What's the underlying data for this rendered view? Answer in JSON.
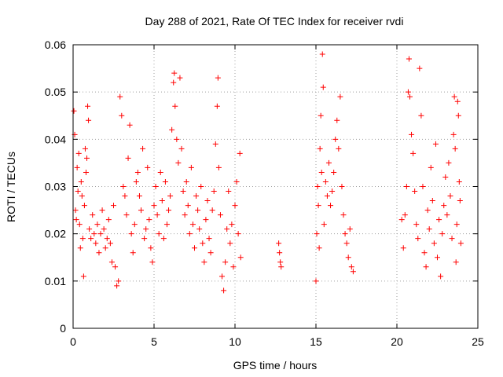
{
  "chart_data": {
    "type": "scatter",
    "title": "Day 288 of 2021, Rate Of TEC Index for receiver rvdi",
    "xlabel": "GPS time / hours",
    "ylabel": "ROTI / TECUs",
    "xlim": [
      0,
      25
    ],
    "ylim": [
      0,
      0.06
    ],
    "xticks": [
      "0",
      "5",
      "10",
      "15",
      "20",
      "25"
    ],
    "yticks": [
      "0",
      "0.01",
      "0.02",
      "0.03",
      "0.04",
      "0.05",
      "0.06"
    ],
    "grid": true,
    "marker": "+",
    "color": "#ff0000",
    "series": [
      {
        "points": [
          [
            0.05,
            0.046
          ],
          [
            0.1,
            0.041
          ],
          [
            0.15,
            0.025
          ],
          [
            0.2,
            0.023
          ],
          [
            0.25,
            0.034
          ],
          [
            0.3,
            0.029
          ],
          [
            0.35,
            0.037
          ],
          [
            0.4,
            0.022
          ],
          [
            0.45,
            0.017
          ],
          [
            0.5,
            0.031
          ],
          [
            0.55,
            0.028
          ],
          [
            0.6,
            0.019
          ],
          [
            0.65,
            0.011
          ],
          [
            0.7,
            0.026
          ],
          [
            0.75,
            0.038
          ],
          [
            0.8,
            0.033
          ],
          [
            0.85,
            0.036
          ],
          [
            0.9,
            0.047
          ],
          [
            0.95,
            0.044
          ],
          [
            1.0,
            0.021
          ],
          [
            1.1,
            0.019
          ],
          [
            1.2,
            0.024
          ],
          [
            1.3,
            0.02
          ],
          [
            1.4,
            0.018
          ],
          [
            1.5,
            0.022
          ],
          [
            1.6,
            0.016
          ],
          [
            1.7,
            0.02
          ],
          [
            1.8,
            0.025
          ],
          [
            1.9,
            0.021
          ],
          [
            2.0,
            0.017
          ],
          [
            2.1,
            0.019
          ],
          [
            2.2,
            0.023
          ],
          [
            2.3,
            0.018
          ],
          [
            2.4,
            0.014
          ],
          [
            2.5,
            0.026
          ],
          [
            2.6,
            0.013
          ],
          [
            2.7,
            0.009
          ],
          [
            2.8,
            0.01
          ],
          [
            2.9,
            0.049
          ],
          [
            3.0,
            0.045
          ],
          [
            3.1,
            0.03
          ],
          [
            3.2,
            0.028
          ],
          [
            3.3,
            0.024
          ],
          [
            3.4,
            0.036
          ],
          [
            3.5,
            0.043
          ],
          [
            3.6,
            0.02
          ],
          [
            3.7,
            0.016
          ],
          [
            3.8,
            0.022
          ],
          [
            3.9,
            0.031
          ],
          [
            4.0,
            0.033
          ],
          [
            4.1,
            0.028
          ],
          [
            4.2,
            0.025
          ],
          [
            4.3,
            0.038
          ],
          [
            4.4,
            0.019
          ],
          [
            4.5,
            0.021
          ],
          [
            4.6,
            0.034
          ],
          [
            4.7,
            0.023
          ],
          [
            4.8,
            0.017
          ],
          [
            4.9,
            0.014
          ],
          [
            5.0,
            0.026
          ],
          [
            5.1,
            0.03
          ],
          [
            5.2,
            0.024
          ],
          [
            5.3,
            0.02
          ],
          [
            5.4,
            0.033
          ],
          [
            5.5,
            0.027
          ],
          [
            5.6,
            0.019
          ],
          [
            5.7,
            0.031
          ],
          [
            5.8,
            0.022
          ],
          [
            5.9,
            0.025
          ],
          [
            6.0,
            0.028
          ],
          [
            6.1,
            0.042
          ],
          [
            6.2,
            0.052
          ],
          [
            6.25,
            0.054
          ],
          [
            6.3,
            0.047
          ],
          [
            6.4,
            0.04
          ],
          [
            6.5,
            0.035
          ],
          [
            6.6,
            0.053
          ],
          [
            6.7,
            0.038
          ],
          [
            6.8,
            0.029
          ],
          [
            6.9,
            0.024
          ],
          [
            7.0,
            0.031
          ],
          [
            7.1,
            0.026
          ],
          [
            7.2,
            0.02
          ],
          [
            7.3,
            0.034
          ],
          [
            7.4,
            0.022
          ],
          [
            7.5,
            0.017
          ],
          [
            7.6,
            0.028
          ],
          [
            7.7,
            0.025
          ],
          [
            7.8,
            0.021
          ],
          [
            7.9,
            0.03
          ],
          [
            8.0,
            0.018
          ],
          [
            8.1,
            0.014
          ],
          [
            8.2,
            0.023
          ],
          [
            8.3,
            0.027
          ],
          [
            8.4,
            0.019
          ],
          [
            8.5,
            0.016
          ],
          [
            8.6,
            0.025
          ],
          [
            8.7,
            0.029
          ],
          [
            8.8,
            0.039
          ],
          [
            8.9,
            0.047
          ],
          [
            8.95,
            0.053
          ],
          [
            9.0,
            0.034
          ],
          [
            9.1,
            0.024
          ],
          [
            9.2,
            0.011
          ],
          [
            9.3,
            0.008
          ],
          [
            9.4,
            0.014
          ],
          [
            9.5,
            0.021
          ],
          [
            9.6,
            0.029
          ],
          [
            9.7,
            0.018
          ],
          [
            9.8,
            0.022
          ],
          [
            9.9,
            0.013
          ],
          [
            10.0,
            0.026
          ],
          [
            10.1,
            0.031
          ],
          [
            10.2,
            0.02
          ],
          [
            10.3,
            0.037
          ],
          [
            10.35,
            0.015
          ],
          [
            12.7,
            0.018
          ],
          [
            12.75,
            0.016
          ],
          [
            12.8,
            0.014
          ],
          [
            12.85,
            0.013
          ],
          [
            15.0,
            0.01
          ],
          [
            15.05,
            0.02
          ],
          [
            15.1,
            0.03
          ],
          [
            15.15,
            0.026
          ],
          [
            15.2,
            0.017
          ],
          [
            15.25,
            0.038
          ],
          [
            15.3,
            0.045
          ],
          [
            15.35,
            0.033
          ],
          [
            15.4,
            0.058
          ],
          [
            15.45,
            0.051
          ],
          [
            15.5,
            0.022
          ],
          [
            15.6,
            0.031
          ],
          [
            15.7,
            0.028
          ],
          [
            15.8,
            0.035
          ],
          [
            15.9,
            0.026
          ],
          [
            16.0,
            0.029
          ],
          [
            16.1,
            0.033
          ],
          [
            16.2,
            0.04
          ],
          [
            16.3,
            0.044
          ],
          [
            16.4,
            0.038
          ],
          [
            16.5,
            0.049
          ],
          [
            16.6,
            0.03
          ],
          [
            16.7,
            0.024
          ],
          [
            16.8,
            0.02
          ],
          [
            16.9,
            0.018
          ],
          [
            17.0,
            0.015
          ],
          [
            17.1,
            0.021
          ],
          [
            17.2,
            0.013
          ],
          [
            17.3,
            0.012
          ],
          [
            20.3,
            0.023
          ],
          [
            20.4,
            0.017
          ],
          [
            20.5,
            0.024
          ],
          [
            20.6,
            0.03
          ],
          [
            20.7,
            0.05
          ],
          [
            20.75,
            0.057
          ],
          [
            20.8,
            0.049
          ],
          [
            20.9,
            0.041
          ],
          [
            21.0,
            0.037
          ],
          [
            21.1,
            0.029
          ],
          [
            21.2,
            0.022
          ],
          [
            21.3,
            0.019
          ],
          [
            21.4,
            0.055
          ],
          [
            21.5,
            0.045
          ],
          [
            21.6,
            0.03
          ],
          [
            21.7,
            0.016
          ],
          [
            21.8,
            0.013
          ],
          [
            21.9,
            0.025
          ],
          [
            22.0,
            0.021
          ],
          [
            22.1,
            0.034
          ],
          [
            22.2,
            0.027
          ],
          [
            22.3,
            0.018
          ],
          [
            22.4,
            0.039
          ],
          [
            22.5,
            0.015
          ],
          [
            22.6,
            0.023
          ],
          [
            22.7,
            0.011
          ],
          [
            22.8,
            0.02
          ],
          [
            22.9,
            0.026
          ],
          [
            23.0,
            0.032
          ],
          [
            23.1,
            0.024
          ],
          [
            23.2,
            0.035
          ],
          [
            23.3,
            0.028
          ],
          [
            23.4,
            0.019
          ],
          [
            23.5,
            0.041
          ],
          [
            23.55,
            0.049
          ],
          [
            23.6,
            0.038
          ],
          [
            23.65,
            0.014
          ],
          [
            23.7,
            0.022
          ],
          [
            23.75,
            0.048
          ],
          [
            23.8,
            0.045
          ],
          [
            23.85,
            0.031
          ],
          [
            23.9,
            0.027
          ],
          [
            23.95,
            0.018
          ]
        ]
      }
    ]
  }
}
